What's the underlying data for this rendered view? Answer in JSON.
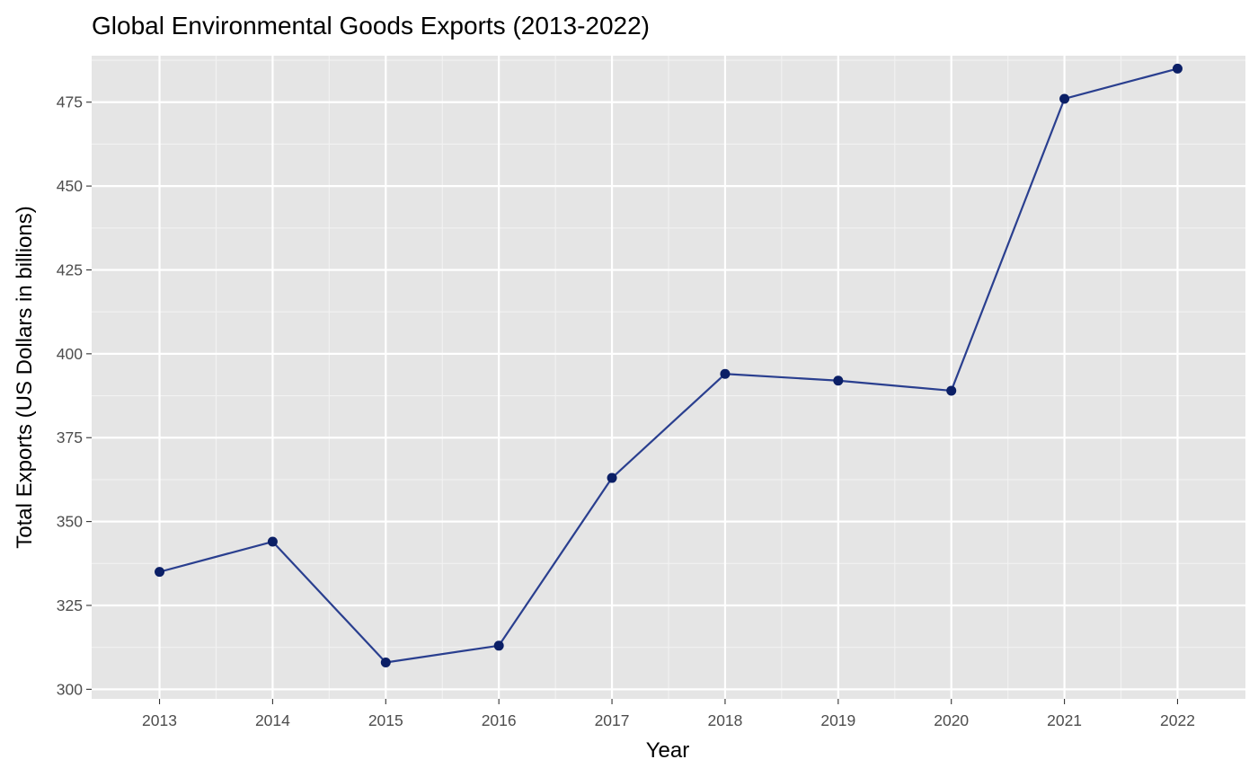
{
  "chart_data": {
    "type": "line",
    "title": "Global Environmental Goods Exports (2013-2022)",
    "xlabel": "Year",
    "ylabel": "Total Exports (US Dollars in billions)",
    "categories": [
      "2013",
      "2014",
      "2015",
      "2016",
      "2017",
      "2018",
      "2019",
      "2020",
      "2021",
      "2022"
    ],
    "series": [
      {
        "values": [
          335,
          344,
          308,
          313,
          363,
          394,
          392,
          389,
          476,
          485
        ]
      }
    ],
    "yticks": [
      300,
      325,
      350,
      375,
      400,
      425,
      450,
      475
    ],
    "ylim": [
      297.15,
      488.85
    ],
    "grid": true,
    "legend": "none",
    "colors": {
      "panel_background": "#e5e5e5",
      "grid_major": "#ffffff",
      "grid_minor": "#f2f2f2",
      "line": "#2a3f8f",
      "point": "#0b1f66",
      "tick_label": "#4d4d4d",
      "tick_mark": "#333333"
    }
  }
}
